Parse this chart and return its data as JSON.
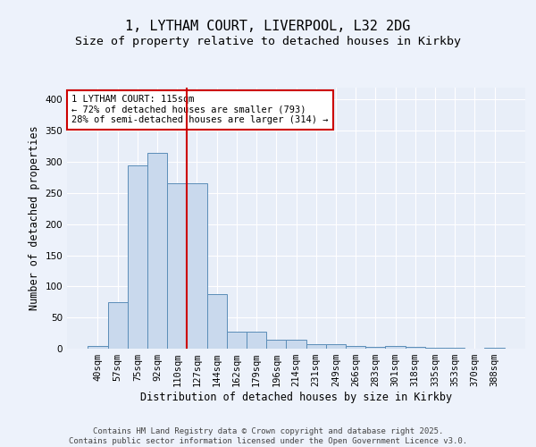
{
  "title_line1": "1, LYTHAM COURT, LIVERPOOL, L32 2DG",
  "title_line2": "Size of property relative to detached houses in Kirkby",
  "xlabel": "Distribution of detached houses by size in Kirkby",
  "ylabel": "Number of detached properties",
  "categories": [
    "40sqm",
    "57sqm",
    "75sqm",
    "92sqm",
    "110sqm",
    "127sqm",
    "144sqm",
    "162sqm",
    "179sqm",
    "196sqm",
    "214sqm",
    "231sqm",
    "249sqm",
    "266sqm",
    "283sqm",
    "301sqm",
    "318sqm",
    "335sqm",
    "353sqm",
    "370sqm",
    "388sqm"
  ],
  "values": [
    5,
    75,
    295,
    315,
    265,
    265,
    88,
    28,
    27,
    15,
    15,
    7,
    7,
    5,
    3,
    4,
    3,
    2,
    2,
    0,
    2
  ],
  "bar_color": "#c9d9ed",
  "bar_edge_color": "#5b8db8",
  "fig_bg_color": "#edf2fb",
  "ax_bg_color": "#e8eef8",
  "grid_color": "#ffffff",
  "red_line_color": "#cc0000",
  "red_line_x": 4.5,
  "annotation_text": "1 LYTHAM COURT: 115sqm\n← 72% of detached houses are smaller (793)\n28% of semi-detached houses are larger (314) →",
  "annotation_box_color": "#ffffff",
  "annotation_box_edge_color": "#cc0000",
  "ylim": [
    0,
    420
  ],
  "yticks": [
    0,
    50,
    100,
    150,
    200,
    250,
    300,
    350,
    400
  ],
  "footer_text": "Contains HM Land Registry data © Crown copyright and database right 2025.\nContains public sector information licensed under the Open Government Licence v3.0.",
  "title_fontsize": 11,
  "subtitle_fontsize": 9.5,
  "axis_label_fontsize": 8.5,
  "tick_fontsize": 7.5,
  "annotation_fontsize": 7.5,
  "footer_fontsize": 6.5
}
